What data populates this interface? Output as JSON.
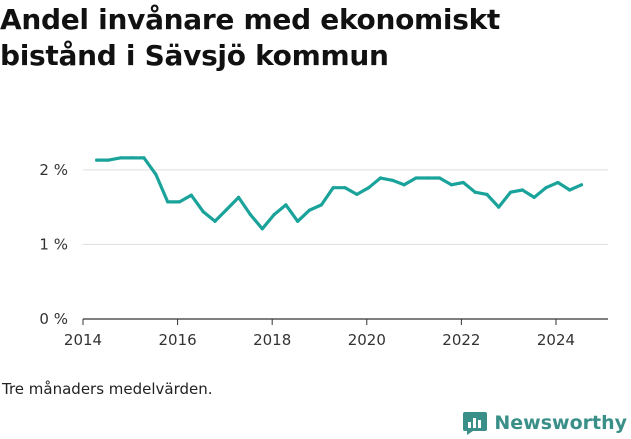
{
  "title": "Andel invånare med ekonomiskt bistånd i Sävsjö kommun",
  "footnote": "Tre månaders medelvärden.",
  "brand": {
    "name": "Newsworthy",
    "icon": "newsworthy-logo-icon",
    "color": "#3a8f88"
  },
  "colors": {
    "line": "#1aa39a",
    "grid": "#dddddd",
    "axis": "#333333"
  },
  "chart_data": {
    "type": "line",
    "title": "Andel invånare med ekonomiskt bistånd i Sävsjö kommun",
    "xlabel": "",
    "ylabel": "",
    "ylim": [
      0,
      2.4
    ],
    "xlim": [
      2014,
      2025.1
    ],
    "y_ticks": [
      {
        "value": 0,
        "label": "0 %"
      },
      {
        "value": 1,
        "label": "1 %"
      },
      {
        "value": 2,
        "label": "2 %"
      }
    ],
    "x_ticks": [
      {
        "value": 2014,
        "label": "2014"
      },
      {
        "value": 2016,
        "label": "2016"
      },
      {
        "value": 2018,
        "label": "2018"
      },
      {
        "value": 2020,
        "label": "2020"
      },
      {
        "value": 2022,
        "label": "2022"
      },
      {
        "value": 2024,
        "label": "2024"
      }
    ],
    "grid": true,
    "series": [
      {
        "x": [
          2014.29,
          2014.54,
          2014.79,
          2015.04,
          2015.29,
          2015.54,
          2015.79,
          2016.04,
          2016.29,
          2016.54,
          2016.79,
          2017.04,
          2017.29,
          2017.54,
          2017.79,
          2018.04,
          2018.29,
          2018.54,
          2018.79,
          2019.04,
          2019.29,
          2019.54,
          2019.79,
          2020.04,
          2020.29,
          2020.54,
          2020.79,
          2021.04,
          2021.29,
          2021.54,
          2021.79,
          2022.04,
          2022.29,
          2022.54,
          2022.79,
          2023.04,
          2023.29,
          2023.54,
          2023.79,
          2024.04,
          2024.29,
          2024.54
        ],
        "values": [
          2.13,
          2.13,
          2.16,
          2.16,
          2.16,
          1.94,
          1.57,
          1.57,
          1.66,
          1.44,
          1.31,
          1.47,
          1.63,
          1.4,
          1.21,
          1.4,
          1.53,
          1.31,
          1.46,
          1.53,
          1.76,
          1.76,
          1.67,
          1.76,
          1.89,
          1.86,
          1.8,
          1.89,
          1.89,
          1.89,
          1.8,
          1.83,
          1.7,
          1.67,
          1.5,
          1.7,
          1.73,
          1.63,
          1.76,
          1.83,
          1.73,
          1.8
        ]
      }
    ]
  }
}
